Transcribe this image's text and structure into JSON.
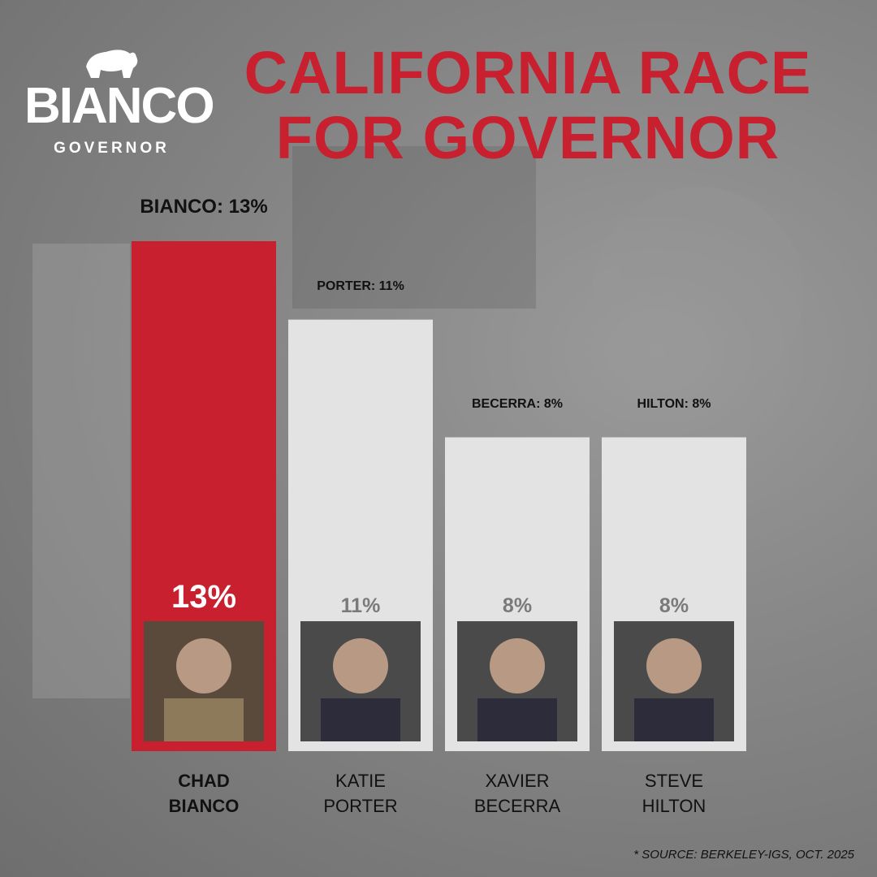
{
  "logo": {
    "name": "BIANCO",
    "subtitle": "GOVERNOR"
  },
  "chart_data": {
    "type": "bar",
    "title": "CALIFORNIA RACE FOR GOVERNOR",
    "categories": [
      "CHAD BIANCO",
      "KATIE PORTER",
      "XAVIER BECERRA",
      "STEVE HILTON"
    ],
    "values": [
      13,
      11,
      8,
      8
    ],
    "value_labels": [
      "13%",
      "11%",
      "8%",
      "8%"
    ],
    "top_labels": [
      "BIANCO: 13%",
      "PORTER: 11%",
      "BECERRA: 8%",
      "HILTON: 8%"
    ],
    "colors": [
      "#c8202f",
      "#e3e3e3",
      "#e3e3e3",
      "#e3e3e3"
    ],
    "ylim": [
      0,
      13
    ]
  },
  "source": "* SOURCE: BERKELEY-IGS, OCT. 2025"
}
